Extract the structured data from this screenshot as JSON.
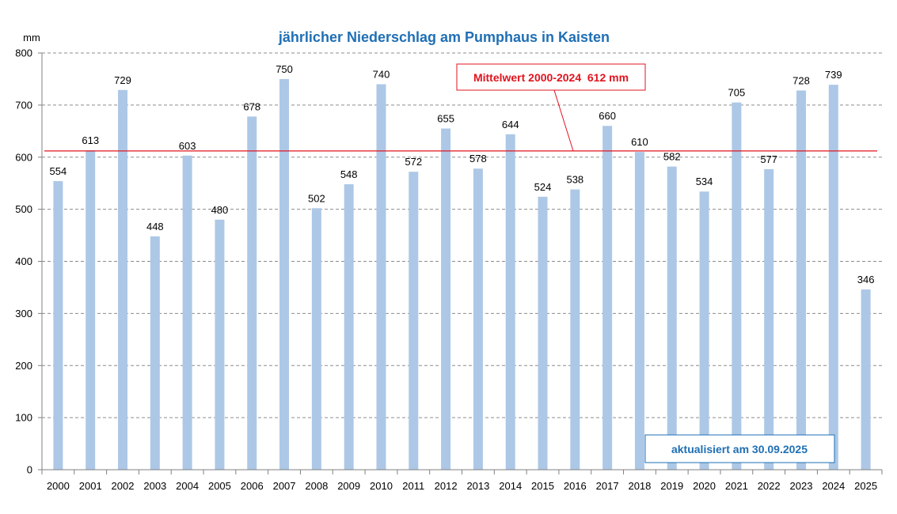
{
  "chart_data": {
    "type": "bar",
    "title": "jährlicher Niederschlag am Pumphaus in Kaisten",
    "ylabel": "mm",
    "ylim": [
      0,
      800
    ],
    "yticks": [
      0,
      100,
      200,
      300,
      400,
      500,
      600,
      700,
      800
    ],
    "categories": [
      "2000",
      "2001",
      "2002",
      "2003",
      "2004",
      "2005",
      "2006",
      "2007",
      "2008",
      "2009",
      "2010",
      "2011",
      "2012",
      "2013",
      "2014",
      "2015",
      "2016",
      "2017",
      "2018",
      "2019",
      "2020",
      "2021",
      "2022",
      "2023",
      "2024",
      "2025"
    ],
    "values": [
      554,
      613,
      729,
      448,
      603,
      480,
      678,
      750,
      502,
      548,
      740,
      572,
      655,
      578,
      644,
      524,
      538,
      660,
      610,
      582,
      534,
      705,
      577,
      728,
      739,
      346
    ],
    "grid": true,
    "bar_color": "#adc8e6",
    "mean_line": {
      "value": 612,
      "label": "Mittelwert 2000-2024  612 mm",
      "color": "#e0141e"
    },
    "annotation": "aktualisiert am 30.09.2025"
  }
}
